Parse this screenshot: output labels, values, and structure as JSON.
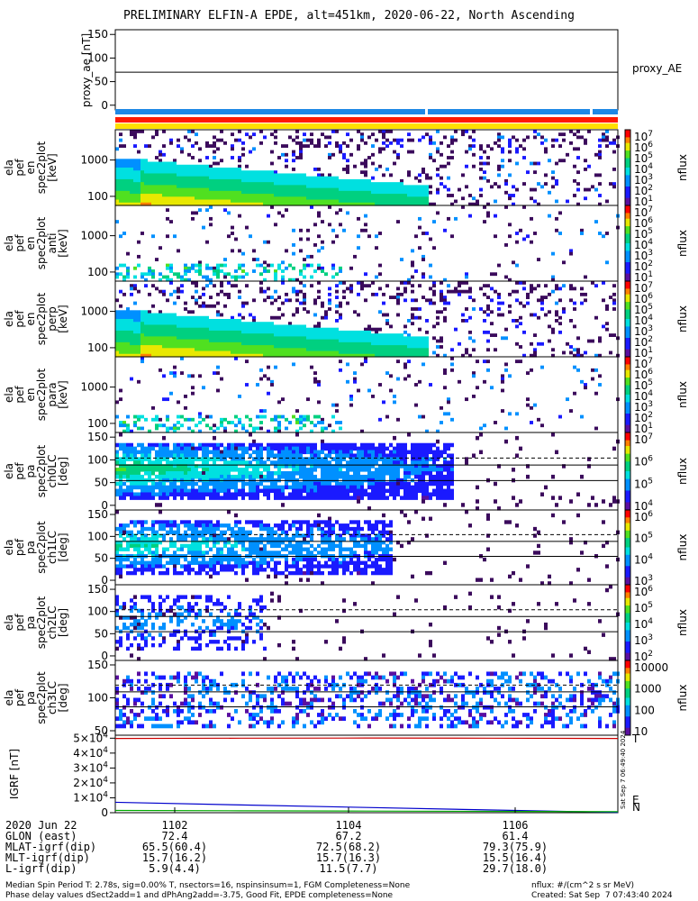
{
  "title": "PRELIMINARY ELFIN-A EPDE, alt=451km, 2020-06-22, North Ascending",
  "colors": {
    "blue_bar": "#1e88e5",
    "red_bar": "#ff1a00",
    "yellow_bar": "#ffe000"
  },
  "chart_data": [
    {
      "type": "line",
      "id": "proxy_ae",
      "ylabel": "proxy_ae [nT]",
      "yticks": [
        "150",
        "100",
        "50",
        "0"
      ],
      "ylim": [
        -10,
        160
      ],
      "legend": "proxy_AE",
      "series": [
        {
          "name": "proxy_AE",
          "values": [
            70,
            70
          ]
        }
      ]
    },
    {
      "type": "heatmap",
      "id": "ela_pef_en_spec2plot",
      "ylabel_lines": [
        "ela",
        "pef",
        "en",
        "spec2plot",
        "[keV]"
      ],
      "yticks": [
        "1000",
        "100"
      ],
      "cbar_label": "nflux",
      "cbar_ticks": [
        "10^7",
        "10^6",
        "10^5",
        "10^4",
        "10^3",
        "10^2",
        "10^1"
      ]
    },
    {
      "type": "heatmap",
      "id": "ela_pef_en_spec2plot_anti",
      "ylabel_lines": [
        "ela",
        "pef",
        "en",
        "spec2plot",
        "anti",
        "[keV]"
      ],
      "yticks": [
        "1000",
        "100"
      ],
      "cbar_label": "nflux",
      "cbar_ticks": [
        "10^7",
        "10^6",
        "10^5",
        "10^4",
        "10^3",
        "10^2",
        "10^1"
      ]
    },
    {
      "type": "heatmap",
      "id": "ela_pef_en_spec2plot_perp",
      "ylabel_lines": [
        "ela",
        "pef",
        "en",
        "spec2plot",
        "perp",
        "[keV]"
      ],
      "yticks": [
        "1000",
        "100"
      ],
      "cbar_label": "nflux",
      "cbar_ticks": [
        "10^7",
        "10^6",
        "10^5",
        "10^4",
        "10^3",
        "10^2",
        "10^1"
      ]
    },
    {
      "type": "heatmap",
      "id": "ela_pef_en_spec2plot_para",
      "ylabel_lines": [
        "ela",
        "pef",
        "en",
        "spec2plot",
        "para",
        "[keV]"
      ],
      "yticks": [
        "1000",
        "100"
      ],
      "cbar_label": "nflux",
      "cbar_ticks": [
        "10^7",
        "10^6",
        "10^5",
        "10^4",
        "10^3",
        "10^2",
        "10^1"
      ]
    },
    {
      "type": "heatmap",
      "id": "ela_pef_pa_spec2plot_ch0LC",
      "ylabel_lines": [
        "ela",
        "pef",
        "pa",
        "spec2plot",
        "ch0LC",
        "[deg]"
      ],
      "yticks": [
        "150",
        "100",
        "50",
        "0"
      ],
      "cbar_label": "nflux",
      "cbar_ticks": [
        "10^7",
        "10^6",
        "10^5",
        "10^4"
      ]
    },
    {
      "type": "heatmap",
      "id": "ela_pef_pa_spec2plot_ch1LC",
      "ylabel_lines": [
        "ela",
        "pef",
        "pa",
        "spec2plot",
        "ch1LC",
        "[deg]"
      ],
      "yticks": [
        "150",
        "100",
        "50",
        "0"
      ],
      "cbar_label": "nflux",
      "cbar_ticks": [
        "10^6",
        "10^5",
        "10^4",
        "10^3"
      ]
    },
    {
      "type": "heatmap",
      "id": "ela_pef_pa_spec2plot_ch2LC",
      "ylabel_lines": [
        "ela",
        "pef",
        "pa",
        "spec2plot",
        "ch2LC",
        "[deg]"
      ],
      "yticks": [
        "150",
        "100",
        "50",
        "0"
      ],
      "cbar_label": "nflux",
      "cbar_ticks": [
        "10^6",
        "10^5",
        "10^4",
        "10^3",
        "10^2"
      ]
    },
    {
      "type": "heatmap",
      "id": "ela_pef_pa_spec2plot_ch3LC",
      "ylabel_lines": [
        "ela",
        "pef",
        "pa",
        "spec2plot",
        "ch3LC",
        "[deg]"
      ],
      "yticks": [
        "150",
        "100",
        "50"
      ],
      "cbar_label": "nflux",
      "cbar_ticks": [
        "10000",
        "1000",
        "100",
        "10"
      ]
    },
    {
      "type": "line",
      "id": "igrf",
      "ylabel": "IGRF [nT]",
      "yticks": [
        "5×10^4",
        "4×10^4",
        "3×10^4",
        "2×10^4",
        "1×10^4",
        "0"
      ],
      "ylim": [
        0,
        52000
      ],
      "series": [
        {
          "name": "",
          "color": "#cc0000",
          "values": [
            49800,
            50000,
            50100,
            50000,
            49800
          ]
        },
        {
          "name": "",
          "color": "#0000cc",
          "values": [
            7000,
            5200,
            3500,
            1800,
            200
          ]
        },
        {
          "name": "",
          "color": "#00aa00",
          "values": [
            1500,
            1300,
            1100,
            900,
            700
          ]
        }
      ],
      "right_labels": [
        "T",
        "E",
        "N"
      ],
      "stamp": "Sat Sep  7 06:49:40 2024"
    }
  ],
  "xaxis": {
    "ticks": [
      "1102",
      "1104",
      "1106"
    ]
  },
  "footer_rows": [
    {
      "label": "2020 Jun 22",
      "values": [
        "1102",
        "1104",
        "1106"
      ]
    },
    {
      "label": "GLON (east)",
      "values": [
        "72.4",
        "67.2",
        "61.4"
      ]
    },
    {
      "label": "MLAT-igrf(dip)",
      "values": [
        "65.5(60.4)",
        "72.5(68.2)",
        "79.3(75.9)"
      ]
    },
    {
      "label": "MLT-igrf(dip)",
      "values": [
        "15.7(16.2)",
        "15.7(16.3)",
        "15.5(16.4)"
      ]
    },
    {
      "label": "L-igrf(dip)",
      "values": [
        "5.9(4.4)",
        "11.5(7.7)",
        "29.7(18.0)"
      ]
    }
  ],
  "footnote_left_1": "Median Spin Period T: 2.78s, sig=0.00% T, nsectors=16, nspinsinsum=1, FGM Completeness=None",
  "footnote_left_2": "Phase delay values dSect2add=1 and dPhAng2add=-3.75, Good Fit, EPDE completeness=None",
  "footnote_right_1": "nflux: #/(cm^2 s sr MeV)",
  "footnote_right_2": "Created: Sat Sep  7 07:43:40 2024"
}
